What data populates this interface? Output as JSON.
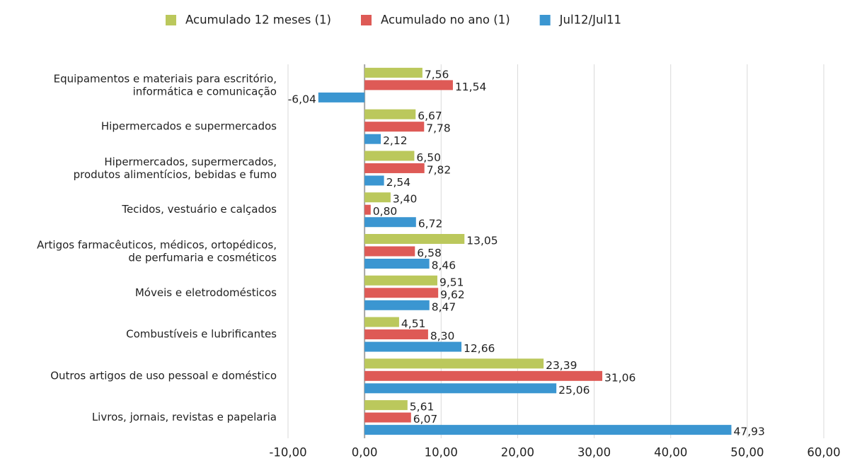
{
  "chart_data": {
    "type": "hbar",
    "categories": [
      "Equipamentos e materiais para escritório,\ninformática e comunicação",
      "Hipermercados e supermercados",
      "Hipermercados, supermercados,\nprodutos alimentícios, bebidas e fumo",
      "Tecidos, vestuário e calçados",
      "Artigos farmacêuticos, médicos, ortopédicos,\nde perfumaria e cosméticos",
      "Móveis e eletrodomésticos",
      "Combustíveis e lubrificantes",
      "Outros artigos de uso pessoal e doméstico",
      "Livros, jornais, revistas e papelaria"
    ],
    "series": [
      {
        "name": "Acumulado 12 meses (1)",
        "color": "#bbc85c",
        "values": [
          7.56,
          6.67,
          6.5,
          3.4,
          13.05,
          9.51,
          4.51,
          23.39,
          5.61
        ],
        "value_labels": [
          "7,56",
          "6,67",
          "6,50",
          "3,40",
          "13,05",
          "9,51",
          "4,51",
          "23,39",
          "5,61"
        ]
      },
      {
        "name": "Acumulado no ano (1)",
        "color": "#de5a56",
        "values": [
          11.54,
          7.78,
          7.82,
          0.8,
          6.58,
          9.62,
          8.3,
          31.06,
          6.07
        ],
        "value_labels": [
          "11,54",
          "7,78",
          "7,82",
          "0,80",
          "6,58",
          "9,62",
          "8,30",
          "31,06",
          "6,07"
        ]
      },
      {
        "name": "Jul12/Jul11",
        "color": "#3b96d1",
        "values": [
          -6.04,
          2.12,
          2.54,
          6.72,
          8.46,
          8.47,
          12.66,
          25.06,
          47.93
        ],
        "value_labels": [
          "-6,04",
          "2,12",
          "2,54",
          "6,72",
          "8,46",
          "8,47",
          "12,66",
          "25,06",
          "47,93"
        ]
      }
    ],
    "xlim": [
      -10,
      60
    ],
    "xticks": [
      {
        "value": -10,
        "label": "-10,00"
      },
      {
        "value": 0,
        "label": "0,00"
      },
      {
        "value": 10,
        "label": "10,00"
      },
      {
        "value": 20,
        "label": "20,00"
      },
      {
        "value": 30,
        "label": "30,00"
      },
      {
        "value": 40,
        "label": "40,00"
      },
      {
        "value": 50,
        "label": "50,00"
      },
      {
        "value": 60,
        "label": "60,00"
      }
    ],
    "grid": true,
    "legend": "top"
  }
}
